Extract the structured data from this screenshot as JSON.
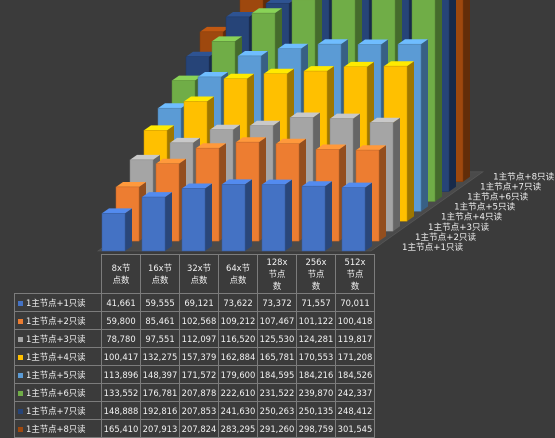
{
  "chart_data": {
    "type": "bar",
    "style": "3d-clustered-column-with-data-table",
    "categories": [
      "8x节点数",
      "16x节点数",
      "32x节点数",
      "64x节点数",
      "128x节点数",
      "256x节点数",
      "512x节点数"
    ],
    "category_header_lines": [
      [
        "8x节",
        "点数"
      ],
      [
        "16x节",
        "点数"
      ],
      [
        "32x节",
        "点数"
      ],
      [
        "64x节",
        "点数"
      ],
      [
        "128x",
        "节点",
        "数"
      ],
      [
        "256x",
        "节点",
        "数"
      ],
      [
        "512x",
        "节点",
        "数"
      ]
    ],
    "series": [
      {
        "name": "1主节点+1只读",
        "color": "#4472c4",
        "values": [
          41661,
          59555,
          69121,
          73622,
          73372,
          71557,
          70011
        ]
      },
      {
        "name": "1主节点+2只读",
        "color": "#ed7d31",
        "values": [
          59800,
          85461,
          102568,
          109212,
          107467,
          101122,
          100418
        ]
      },
      {
        "name": "1主节点+3只读",
        "color": "#a5a5a5",
        "values": [
          78780,
          97551,
          112097,
          116520,
          125530,
          124281,
          119817
        ]
      },
      {
        "name": "1主节点+4只读",
        "color": "#ffc000",
        "values": [
          100417,
          132275,
          157379,
          162884,
          165781,
          170553,
          171208
        ]
      },
      {
        "name": "1主节点+5只读",
        "color": "#5b9bd5",
        "values": [
          113896,
          148397,
          171572,
          179600,
          184595,
          184216,
          184526
        ]
      },
      {
        "name": "1主节点+6只读",
        "color": "#70ad47",
        "values": [
          133552,
          176781,
          207878,
          222610,
          231522,
          239870,
          242337
        ]
      },
      {
        "name": "1主节点+7只读",
        "color": "#264478",
        "values": [
          148888,
          192816,
          207853,
          241630,
          250263,
          250135,
          248412
        ]
      },
      {
        "name": "1主节点+8只读",
        "color": "#9e480e",
        "values": [
          165410,
          207913,
          207824,
          283295,
          291260,
          298759,
          301545
        ]
      }
    ],
    "table_values_text": [
      [
        "41,661",
        "59,555",
        "69,121",
        "73,622",
        "73,372",
        "71,557",
        "70,011"
      ],
      [
        "59,800",
        "85,461",
        "102,568",
        "109,212",
        "107,467",
        "101,122",
        "100,418"
      ],
      [
        "78,780",
        "97,551",
        "112,097",
        "116,520",
        "125,530",
        "124,281",
        "119,817"
      ],
      [
        "100,417",
        "132,275",
        "157,379",
        "162,884",
        "165,781",
        "170,553",
        "171,208"
      ],
      [
        "113,896",
        "148,397",
        "171,572",
        "179,600",
        "184,595",
        "184,216",
        "184,526"
      ],
      [
        "133,552",
        "176,781",
        "207,878",
        "222,610",
        "231,522",
        "239,870",
        "242,337"
      ],
      [
        "148,888",
        "192,816",
        "207,853",
        "241,630",
        "250,263",
        "250,135",
        "248,412"
      ],
      [
        "165,410",
        "207,913",
        "207,824",
        "283,295",
        "291,260",
        "298,759",
        "301,545"
      ]
    ],
    "ylim": [
      0,
      320000
    ],
    "grid": false,
    "legend": "in-table",
    "title": "",
    "xlabel": "",
    "ylabel": ""
  }
}
